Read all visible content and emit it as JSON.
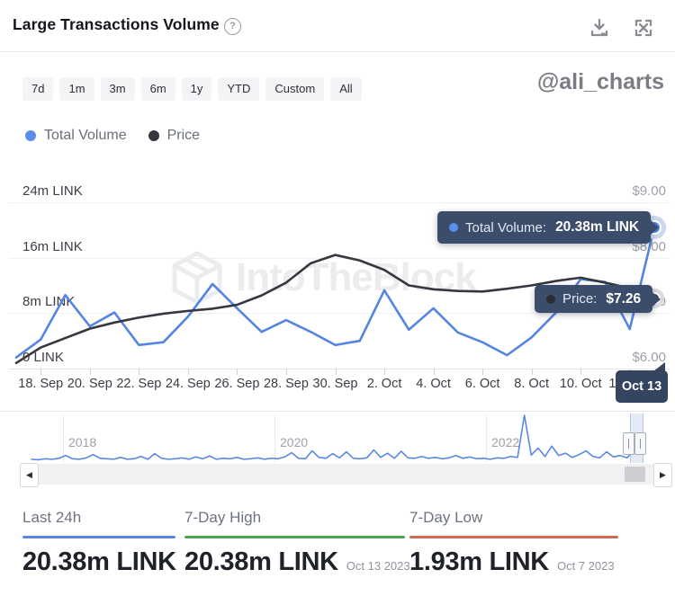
{
  "header": {
    "title": "Large Transactions Volume",
    "help_glyph": "?"
  },
  "toolbar": {
    "ranges": [
      "7d",
      "1m",
      "3m",
      "6m",
      "1y",
      "YTD",
      "Custom",
      "All"
    ]
  },
  "watermark": {
    "handle": "@ali_charts",
    "brand": "IntoTheBlock"
  },
  "legend": [
    {
      "label": "Total Volume",
      "color": "#5b8df0"
    },
    {
      "label": "Price",
      "color": "#35363e"
    }
  ],
  "chart_data": [
    {
      "type": "line",
      "title": "Large Transactions Volume",
      "x": [
        "Sep 17",
        "Sep 18",
        "Sep 19",
        "Sep 20",
        "Sep 21",
        "Sep 22",
        "Sep 23",
        "Sep 24",
        "Sep 25",
        "Sep 26",
        "Sep 27",
        "Sep 28",
        "Sep 29",
        "Sep 30",
        "Oct 1",
        "Oct 2",
        "Oct 3",
        "Oct 4",
        "Oct 5",
        "Oct 6",
        "Oct 7",
        "Oct 8",
        "Oct 9",
        "Oct 10",
        "Oct 11",
        "Oct 12",
        "Oct 13"
      ],
      "x_tick_labels": [
        "18. Sep",
        "20. Sep",
        "22. Sep",
        "24. Sep",
        "26. Sep",
        "28. Sep",
        "30. Sep",
        "2. Oct",
        "4. Oct",
        "6. Oct",
        "8. Oct",
        "10. Oct",
        "12. Oct"
      ],
      "series": [
        {
          "name": "Total Volume",
          "unit": "m LINK",
          "axis": "left",
          "color": "#5585e2",
          "values": [
            1.6,
            4.2,
            10.6,
            6.1,
            8.1,
            3.4,
            3.8,
            7.5,
            12.2,
            8.7,
            5.3,
            7.0,
            5.3,
            3.4,
            4.0,
            11.3,
            5.6,
            8.7,
            5.2,
            3.8,
            1.93,
            4.5,
            8.1,
            12.9,
            12.5,
            5.7,
            20.38
          ]
        },
        {
          "name": "Price",
          "unit": "USD",
          "axis": "right",
          "color": "#36373f",
          "values": [
            6.1,
            6.38,
            6.55,
            6.72,
            6.83,
            6.92,
            6.99,
            7.04,
            7.08,
            7.15,
            7.32,
            7.55,
            7.9,
            8.05,
            7.95,
            7.78,
            7.5,
            7.43,
            7.4,
            7.39,
            7.44,
            7.5,
            7.58,
            7.64,
            7.55,
            7.45,
            7.26
          ]
        }
      ],
      "left_axis": {
        "labels": [
          "24m LINK",
          "16m LINK",
          "8m LINK",
          "0 LINK"
        ],
        "min": 0,
        "max": 24
      },
      "right_axis": {
        "labels": [
          "$9.00",
          "$8.00",
          "$7.00",
          "$6.00"
        ],
        "min": 6,
        "max": 9
      },
      "grid": true,
      "legend_position": "top-left"
    },
    {
      "type": "line",
      "title": "history navigator",
      "x_tick_labels": [
        "2018",
        "2020",
        "2022"
      ],
      "values": [
        6,
        5,
        7,
        6,
        8,
        14,
        7,
        6,
        9,
        16,
        8,
        7,
        6,
        10,
        6,
        7,
        12,
        6,
        18,
        8,
        6,
        7,
        9,
        6,
        11,
        7,
        13,
        6,
        8,
        7,
        10,
        6,
        7,
        9,
        6,
        8,
        7,
        11,
        20,
        8,
        7,
        24,
        10,
        8,
        18,
        9,
        22,
        8,
        7,
        9,
        26,
        10,
        19,
        8,
        23,
        9,
        8,
        12,
        8,
        10,
        7,
        9,
        14,
        8,
        11,
        7,
        8,
        6,
        9,
        8,
        12,
        10,
        100,
        15,
        30,
        12,
        34,
        14,
        19,
        10,
        16,
        24,
        12,
        9,
        22,
        11,
        14,
        9,
        26,
        18
      ]
    }
  ],
  "tooltips": {
    "volume": {
      "label": "Total Volume:",
      "value": "20.38m LINK"
    },
    "price": {
      "label": "Price:",
      "value": "$7.26"
    },
    "date_badge": "Oct 13"
  },
  "scrollbar": {
    "left_glyph": "◀",
    "right_glyph": "▶"
  },
  "stats": [
    {
      "label": "Last 24h",
      "value": "20.38m LINK",
      "date": "",
      "accent": "#5b87e0"
    },
    {
      "label": "7-Day High",
      "value": "20.38m LINK",
      "date": "Oct 13 2023",
      "accent": "#4aa54e"
    },
    {
      "label": "7-Day Low",
      "value": "1.93m LINK",
      "date": "Oct 7 2023",
      "accent": "#cf6a50"
    }
  ]
}
